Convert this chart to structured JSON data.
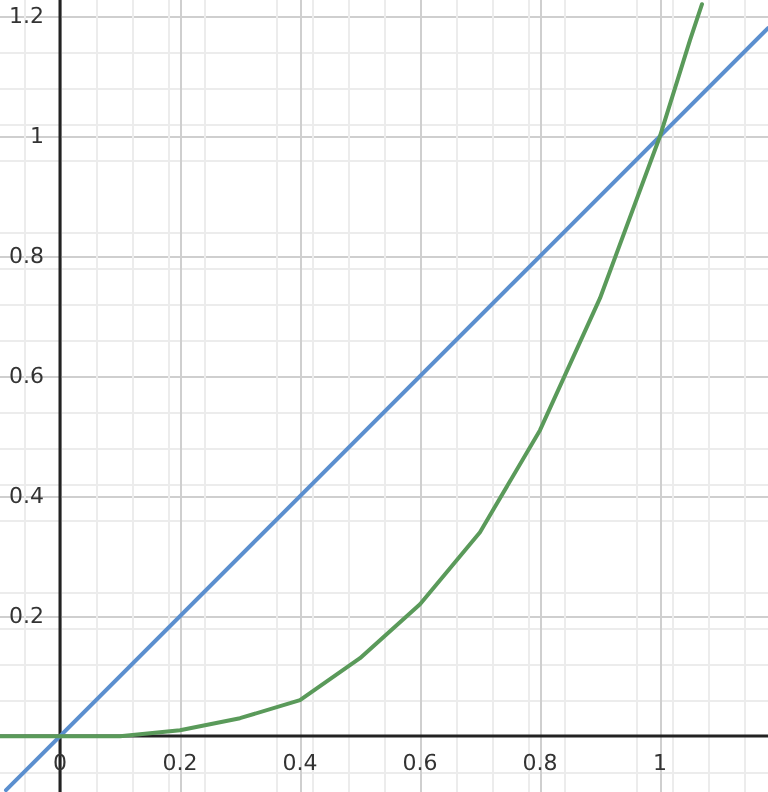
{
  "chart_data": {
    "type": "line",
    "xlim": [
      -0.1,
      1.18
    ],
    "ylim": [
      -0.093,
      1.227
    ],
    "xticks": [
      0,
      0.2,
      0.4,
      0.6,
      0.8,
      1
    ],
    "yticks": [
      0.2,
      0.4,
      0.6,
      0.8,
      1,
      1.2
    ],
    "grid": true,
    "marker": "none",
    "series": [
      {
        "color": "#5b8fcf",
        "x": [
          -0.09,
          1.18
        ],
        "values": [
          -0.09,
          1.18
        ]
      },
      {
        "color": "#5a9a5a",
        "x": [
          -0.1,
          0,
          0.1,
          0.2,
          0.3,
          0.4,
          0.5,
          0.6,
          0.7,
          0.8,
          0.9,
          1,
          1.05,
          1.07
        ],
        "values": [
          0,
          0,
          0,
          0.01,
          0.03,
          0.06,
          0.13,
          0.22,
          0.34,
          0.51,
          0.73,
          1,
          1.16,
          1.22
        ]
      }
    ]
  }
}
